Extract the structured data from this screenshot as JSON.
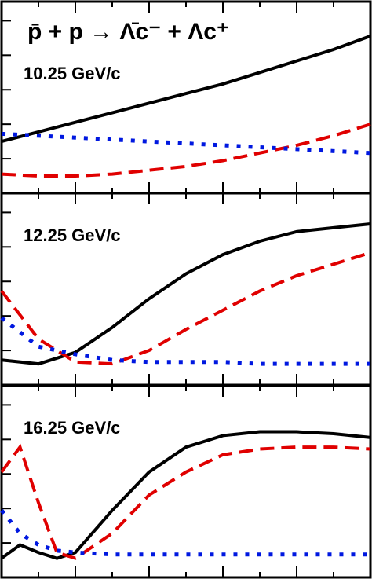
{
  "chart_data": [
    {
      "type": "line",
      "title": "p̄ + p → Λ̄c⁻ + Λc⁺",
      "label": "10.25 GeV/c",
      "x": [
        0,
        10,
        20,
        30,
        40,
        50,
        60,
        70,
        80,
        90,
        100
      ],
      "xlim": [
        0,
        100
      ],
      "xticks": [
        10,
        20,
        30,
        40,
        50,
        60,
        70,
        80,
        90
      ],
      "ylim": [
        0,
        100
      ],
      "yticks": [
        18,
        36,
        54,
        72,
        90
      ],
      "series": [
        {
          "color": "#000000",
          "style": "solid",
          "values": [
            27,
            32,
            37,
            42,
            47,
            52,
            57,
            63,
            69,
            75,
            82
          ]
        },
        {
          "color": "#e00000",
          "style": "dashed",
          "values": [
            10,
            9,
            9,
            10,
            12,
            14,
            17,
            21,
            25,
            30,
            36
          ]
        },
        {
          "color": "#0018e0",
          "style": "dotted",
          "values": [
            31,
            30,
            29,
            28,
            27,
            26,
            25,
            24,
            23,
            22,
            21
          ]
        }
      ]
    },
    {
      "type": "line",
      "label": "12.25 GeV/c",
      "x": [
        0,
        10,
        20,
        30,
        40,
        50,
        60,
        70,
        80,
        90,
        100
      ],
      "xlim": [
        0,
        100
      ],
      "xticks": [
        10,
        20,
        30,
        40,
        50,
        60,
        70,
        80,
        90
      ],
      "ylim": [
        0,
        100
      ],
      "yticks": [
        18,
        36,
        54,
        72,
        90
      ],
      "series": [
        {
          "color": "#000000",
          "style": "solid",
          "values": [
            13,
            11,
            17,
            30,
            45,
            58,
            68,
            75,
            80,
            82,
            84
          ]
        },
        {
          "color": "#e00000",
          "style": "dashed",
          "values": [
            49,
            24,
            12,
            11,
            18,
            29,
            39,
            49,
            57,
            63,
            69
          ]
        },
        {
          "color": "#0018e0",
          "style": "dotted",
          "values": [
            35,
            20,
            16,
            13,
            12,
            12,
            12,
            11,
            11,
            11,
            11
          ]
        }
      ]
    },
    {
      "type": "line",
      "label": "16.25 GeV/c",
      "x": [
        0,
        5,
        10,
        15,
        20,
        30,
        40,
        50,
        60,
        70,
        80,
        90,
        100
      ],
      "xlim": [
        0,
        100
      ],
      "xticks": [
        10,
        20,
        30,
        40,
        50,
        60,
        70,
        80,
        90
      ],
      "ylim": [
        0,
        100
      ],
      "yticks": [
        18,
        36,
        54,
        72,
        90
      ],
      "series": [
        {
          "color": "#000000",
          "style": "solid",
          "values": [
            10,
            17,
            13,
            10,
            13,
            35,
            55,
            68,
            74,
            76,
            76,
            75,
            73
          ]
        },
        {
          "color": "#e00000",
          "style": "dashed",
          "values": [
            55,
            68,
            39,
            13,
            10,
            23,
            43,
            55,
            64,
            67,
            68,
            68,
            67
          ]
        },
        {
          "color": "#0018e0",
          "style": "dotted",
          "values": [
            35,
            23,
            17,
            14,
            13,
            12,
            12,
            12,
            12,
            12,
            12,
            12,
            12
          ]
        }
      ]
    }
  ]
}
